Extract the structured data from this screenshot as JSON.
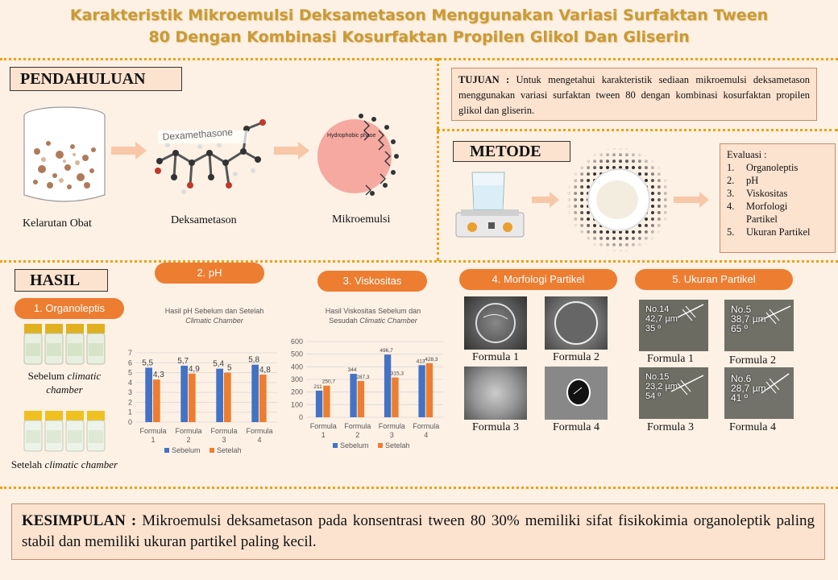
{
  "title": {
    "line1": "Karakteristik Mikroemulsi Deksametason Menggunakan Variasi Surfaktan Tween",
    "line2": "80 Dengan Kombinasi Kosurfaktan Propilen Glikol Dan Gliserin"
  },
  "pendahuluan": {
    "label": "PENDAHULUAN",
    "items": [
      {
        "caption": "Kelarutan  Obat"
      },
      {
        "caption": "Deksametason",
        "overlay": "Dexamethasone"
      },
      {
        "caption": "Mikroemulsi",
        "overlay": "Hydrophobic phase"
      }
    ]
  },
  "tujuan": {
    "label": "TUJUAN :",
    "text": " Untuk mengetahui karakteristik sediaan mikroemulsi deksametason menggunakan variasi surfaktan tween 80 dengan kombinasi kosurfaktan propilen glikol dan gliserin."
  },
  "metode": {
    "label": "METODE",
    "evaluasi_title": "Evaluasi :",
    "evaluasi": [
      {
        "num": "1.",
        "text": "Organoleptis"
      },
      {
        "num": "2.",
        "text": "pH"
      },
      {
        "num": "3.",
        "text": "Viskositas"
      },
      {
        "num": "4.",
        "text": "Morfologi Partikel"
      },
      {
        "num": "5.",
        "text": "Ukuran Partikel"
      }
    ]
  },
  "hasil": {
    "label": "HASIL",
    "organoleptis": {
      "pill": "1. Organoleptis",
      "before": {
        "prefix": "Sebelum ",
        "italic": "climatic chamber"
      },
      "after": {
        "prefix": "Setelah ",
        "italic": "climatic chamber"
      }
    },
    "ph_pill": "2. pH",
    "visk_pill": "3. Viskositas",
    "morf_pill": "4. Morfologi Partikel",
    "ukuran_pill": "5. Ukuran Partikel",
    "morf_captions": [
      "Formula  1",
      "Formula  2",
      "Formula  3",
      "Formula  4"
    ],
    "ukuran_captions": [
      "Formula  1",
      "Formula  2",
      "Formula  3",
      "Formula  4"
    ],
    "ukuran_labels": [
      {
        "no": "No.14",
        "size": "42,7 µm",
        "angle": "35 º"
      },
      {
        "no": "No.5",
        "size": "38,7 µm",
        "angle": "65 º"
      },
      {
        "no": "No.15",
        "size": "23,2 µm",
        "angle": "54 º"
      },
      {
        "no": "No.6",
        "size": "28,7 µm",
        "angle": "41 º"
      }
    ]
  },
  "kesimpulan": {
    "label": "KESIMPULAN :",
    "text": " Mikroemulsi deksametason pada konsentrasi tween 80 30% memiliki sifat fisikokimia organoleptik paling stabil dan memiliki ukuran partikel paling kecil."
  },
  "colors": {
    "sebelum": "#4472c4",
    "setelah": "#ed7d31",
    "accent": "#ed7d31",
    "title": "#c89a3a"
  },
  "chart_data": [
    {
      "type": "bar",
      "title": "Hasil pH Sebelum dan Setelah",
      "title_italic": "Climatic Chamber",
      "categories": [
        "Formula 1",
        "Formula 2",
        "Formula 3",
        "Formula 4"
      ],
      "series": [
        {
          "name": "Sebelum",
          "values": [
            5.5,
            5.7,
            5.4,
            5.8
          ],
          "labels": [
            "5,5",
            "5,7",
            "5,4",
            "5,8"
          ]
        },
        {
          "name": "Setelah",
          "values": [
            4.3,
            4.9,
            5,
            4.8
          ],
          "labels": [
            "4,3",
            "4,9",
            "5",
            "4,8"
          ]
        }
      ],
      "ylim": [
        0,
        7
      ],
      "yticks": [
        "0",
        "1",
        "2",
        "3",
        "4",
        "5",
        "6",
        "7"
      ],
      "grid": true,
      "legend": "bottom"
    },
    {
      "type": "bar",
      "title": "Hasil Viskositas Sebelum dan",
      "title_line2": "Sesudah",
      "title_italic": "Climatic Chamber",
      "categories": [
        "Formula 1",
        "Formula 2",
        "Formula 3",
        "Formula 4"
      ],
      "series": [
        {
          "name": "Sebelum",
          "values": [
            211,
            344,
            496.7,
            413
          ],
          "labels": [
            "211",
            "344",
            "496,7",
            "413"
          ]
        },
        {
          "name": "Setelah",
          "values": [
            250.7,
            287.3,
            315.3,
            428.3
          ],
          "labels": [
            "250,7",
            "287,3",
            "315,3",
            "428,3"
          ]
        }
      ],
      "ylim": [
        0,
        600
      ],
      "yticks": [
        "0",
        "100",
        "200",
        "300",
        "400",
        "500",
        "600"
      ],
      "grid": true,
      "legend": "bottom"
    }
  ]
}
